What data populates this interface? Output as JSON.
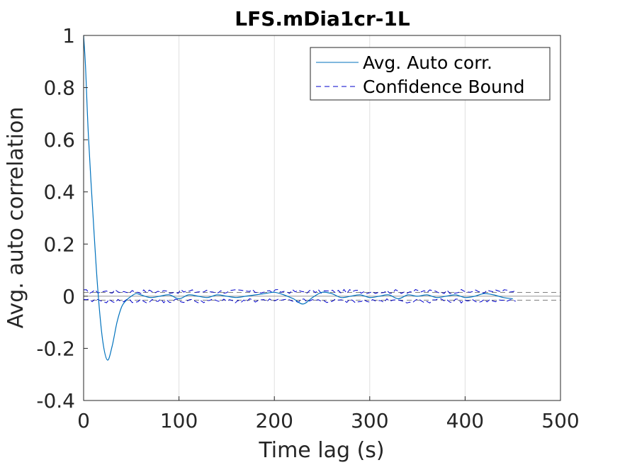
{
  "chart_data": {
    "type": "line",
    "title": "LFS.mDia1cr-1L",
    "xlabel": "Time lag (s)",
    "ylabel": "Avg. auto correlation",
    "xlim": [
      0,
      500
    ],
    "ylim": [
      -0.4,
      1
    ],
    "x_ticks": [
      "0",
      "100",
      "200",
      "300",
      "400",
      "500"
    ],
    "y_ticks": [
      "-0.4",
      "-0.2",
      "0",
      "0.2",
      "0.4",
      "0.6",
      "0.8",
      "1"
    ],
    "x_tick_values": [
      0,
      100,
      200,
      300,
      400,
      500
    ],
    "y_tick_values": [
      -0.4,
      -0.2,
      0,
      0.2,
      0.4,
      0.6,
      0.8,
      1
    ],
    "grid": "x-major",
    "legend_position": "top-right",
    "series": [
      {
        "name": "Avg. Auto corr.",
        "color": "#0072BD",
        "style": "solid",
        "x": [
          0,
          2,
          5,
          10,
          15,
          20,
          25,
          30,
          35,
          40,
          45,
          50,
          55,
          60,
          70,
          80,
          90,
          100,
          110,
          120,
          130,
          140,
          150,
          160,
          170,
          180,
          190,
          200,
          210,
          220,
          230,
          240,
          250,
          260,
          270,
          280,
          290,
          300,
          310,
          320,
          330,
          340,
          350,
          360,
          370,
          380,
          390,
          400,
          410,
          420,
          430,
          440,
          450
        ],
        "y": [
          1.0,
          0.88,
          0.62,
          0.3,
          0.02,
          -0.17,
          -0.245,
          -0.19,
          -0.1,
          -0.04,
          -0.015,
          0.0,
          0.01,
          0.005,
          -0.005,
          0.0,
          0.005,
          -0.01,
          0.005,
          0.0,
          -0.005,
          0.005,
          0.0,
          -0.005,
          0.0,
          0.005,
          0.01,
          0.015,
          0.005,
          -0.01,
          -0.03,
          -0.005,
          0.015,
          0.01,
          -0.005,
          0.0,
          0.005,
          -0.005,
          0.0,
          0.005,
          -0.01,
          0.005,
          0.0,
          0.005,
          -0.005,
          0.0,
          0.005,
          -0.005,
          0.0,
          0.01,
          0.005,
          -0.005,
          -0.01
        ]
      },
      {
        "name": "Confidence Bound",
        "color": "#0000CC",
        "style": "dashed",
        "x": [
          0,
          455
        ],
        "upper": 0.018,
        "lower": -0.018,
        "ripple": 0.008
      }
    ],
    "horizontal_lines": [
      {
        "y": 0.015,
        "color": "#555555",
        "style": "dashed"
      },
      {
        "y": 0.0,
        "color": "#777777",
        "style": "solid"
      },
      {
        "y": -0.015,
        "color": "#555555",
        "style": "dashed"
      }
    ]
  }
}
